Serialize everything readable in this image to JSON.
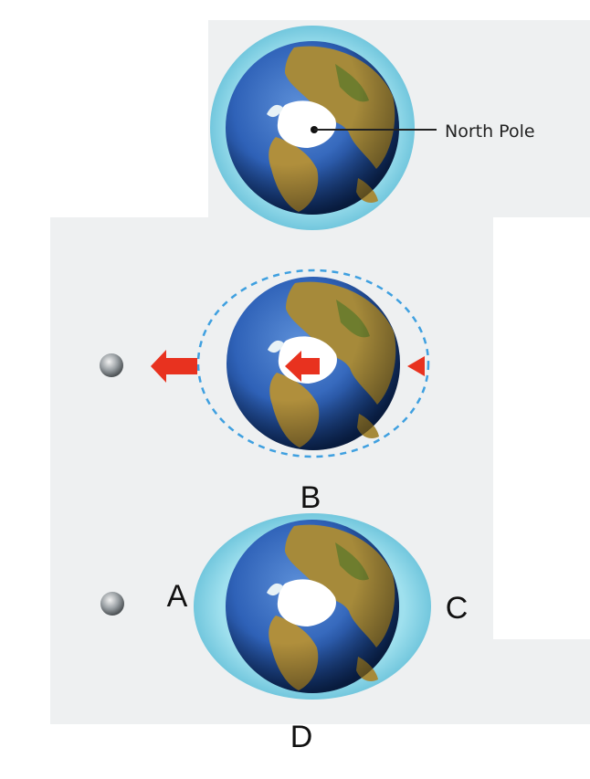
{
  "labels": {
    "north_pole": "North Pole",
    "a": "A",
    "b": "B",
    "c": "C",
    "d": "D"
  },
  "panels": [
    {
      "name": "earth-top",
      "tide": "uniform"
    },
    {
      "name": "earth-middle",
      "tide": "force-arrows"
    },
    {
      "name": "earth-bottom",
      "tide": "bulge"
    }
  ],
  "colors": {
    "ocean": "#2f62b8",
    "ocean_dark": "#123a7c",
    "land": "#a68a3a",
    "ice": "#ffffff",
    "water_layer": "#7fd3e6",
    "dashed_orbit": "#3fa0e0",
    "arrow": "#e8321f",
    "moon": "#9aa0a4"
  }
}
